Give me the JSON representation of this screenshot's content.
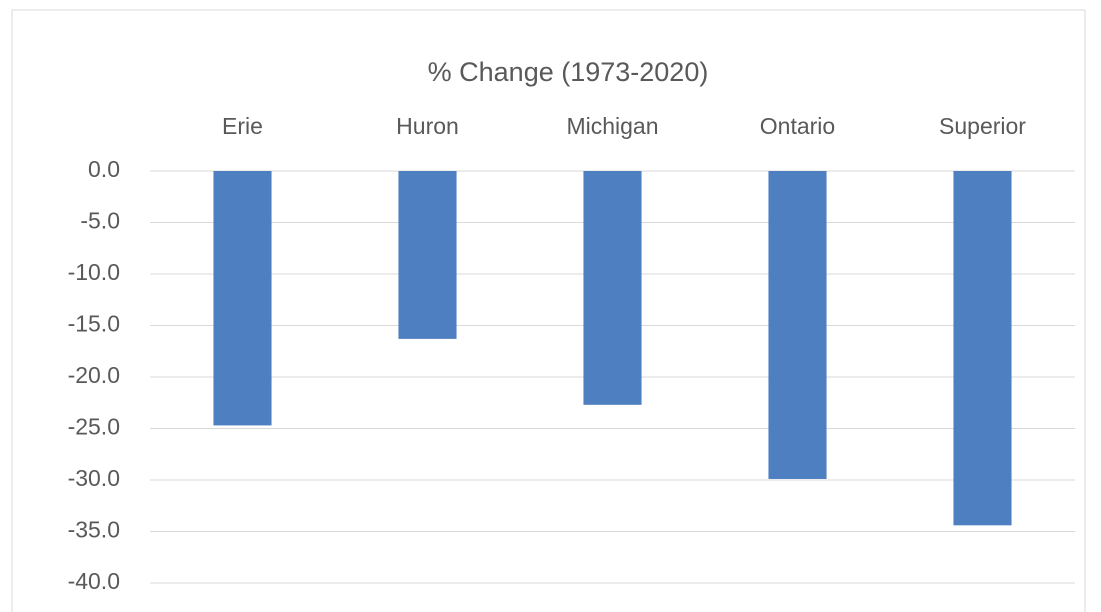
{
  "chart_data": {
    "type": "bar",
    "title": "% Change (1973-2020)",
    "categories": [
      "Erie",
      "Huron",
      "Michigan",
      "Ontario",
      "Superior"
    ],
    "values": [
      -24.7,
      -16.3,
      -22.7,
      -29.9,
      -34.4
    ],
    "color": "#4e7fc0",
    "ylim": [
      -40,
      0
    ],
    "yticks": [
      {
        "value": 0,
        "label": "0.0"
      },
      {
        "value": -5,
        "label": "-5.0"
      },
      {
        "value": -10,
        "label": "-10.0"
      },
      {
        "value": -15,
        "label": "-15.0"
      },
      {
        "value": -20,
        "label": "-20.0"
      },
      {
        "value": -25,
        "label": "-25.0"
      },
      {
        "value": -30,
        "label": "-30.0"
      },
      {
        "value": -35,
        "label": "-35.0"
      },
      {
        "value": -40,
        "label": "-40.0"
      }
    ],
    "grid": true
  }
}
